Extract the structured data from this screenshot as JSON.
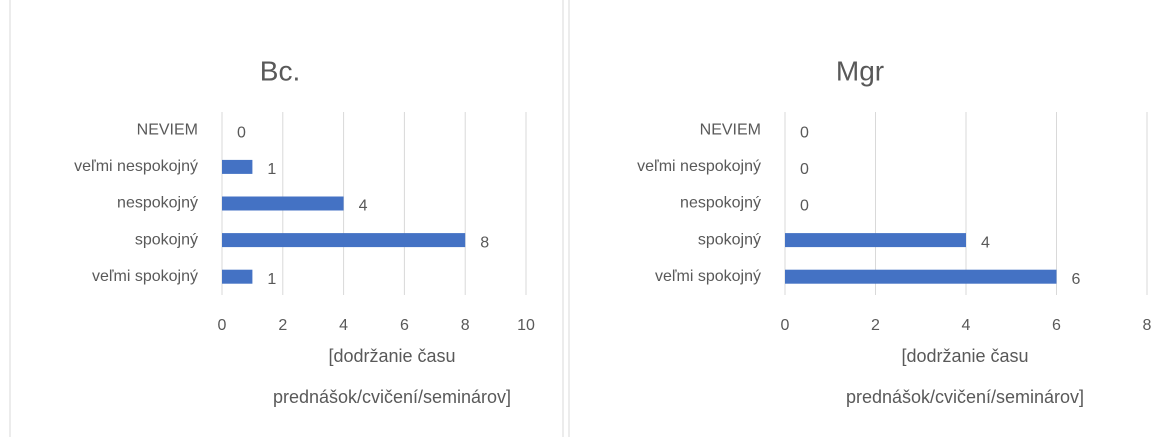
{
  "chart_data": [
    {
      "type": "bar",
      "orientation": "horizontal",
      "title": "Bc.",
      "categories": [
        "NEVIEM",
        "veľmi nespokojný",
        "nespokojný",
        "spokojný",
        "veľmi spokojný"
      ],
      "values": [
        0,
        1,
        4,
        8,
        1
      ],
      "color": "#4472c4",
      "xlabel": "[dodržanie času prednášok/cvičení/seminárov]",
      "xlim": [
        0,
        10
      ],
      "xticks": [
        0,
        2,
        4,
        6,
        8,
        10
      ],
      "grid": true
    },
    {
      "type": "bar",
      "orientation": "horizontal",
      "title": "Mgr",
      "categories": [
        "NEVIEM",
        "veľmi nespokojný",
        "nespokojný",
        "spokojný",
        "veľmi spokojný"
      ],
      "values": [
        0,
        0,
        0,
        4,
        6
      ],
      "color": "#4472c4",
      "xlabel": "[dodržanie času prednášok/cvičení/seminárov]",
      "xlim": [
        0,
        8
      ],
      "xticks": [
        0,
        2,
        4,
        6,
        8
      ],
      "grid": true
    }
  ]
}
